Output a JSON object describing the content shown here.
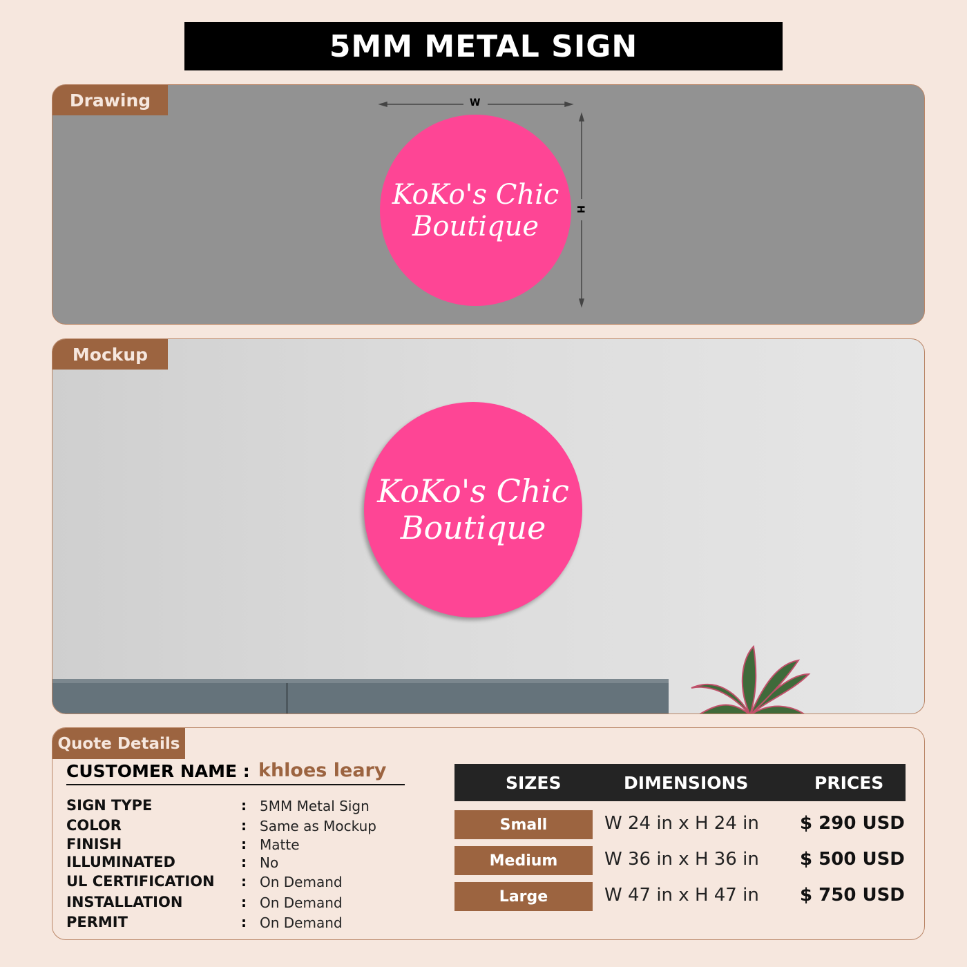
{
  "title": "5MM METAL SIGN",
  "drawing": {
    "label": "Drawing",
    "width_marker": "W",
    "height_marker": "H",
    "sign_line1": "KoKo's Chic",
    "sign_line2": "Boutique"
  },
  "mockup": {
    "label": "Mockup",
    "sign_line1": "KoKo's Chic",
    "sign_line2": "Boutique"
  },
  "quote": {
    "label": "Quote Details",
    "customer_label": "CUSTOMER NAME :",
    "customer_name": "khloes leary",
    "details": [
      {
        "label": "SIGN TYPE",
        "value": "5MM Metal Sign"
      },
      {
        "label": "COLOR",
        "value": "Same as Mockup"
      },
      {
        "label": "FINISH",
        "value": "Matte"
      },
      {
        "label": "ILLUMINATED",
        "value": "No"
      },
      {
        "label": "UL CERTIFICATION",
        "value": "On Demand"
      },
      {
        "label": "INSTALLATION",
        "value": "On Demand"
      },
      {
        "label": "PERMIT",
        "value": "On Demand"
      }
    ],
    "table": {
      "headers": [
        "SIZES",
        "DIMENSIONS",
        "PRICES"
      ],
      "rows": [
        {
          "size": "Small",
          "dimensions": "W 24 in x H 24 in",
          "price": "$ 290 USD"
        },
        {
          "size": "Medium",
          "dimensions": "W 36 in x H 36 in",
          "price": "$ 500 USD"
        },
        {
          "size": "Large",
          "dimensions": "W 47 in x H 47 in",
          "price": "$ 750 USD"
        }
      ]
    }
  },
  "colors": {
    "accent": "#9c6440",
    "sign_pink": "#fe4595",
    "background": "#f6e7de"
  }
}
